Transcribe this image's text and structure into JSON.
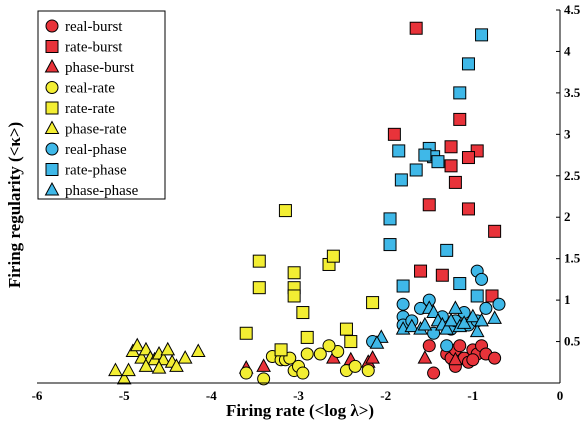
{
  "chart_data": {
    "type": "scatter",
    "xlabel": "Firing rate (<log λ>)",
    "ylabel": "Firing regularity (<κ>)",
    "xlim": [
      -6,
      0
    ],
    "ylim": [
      0,
      4.5
    ],
    "xticks": [
      "-6",
      "-5",
      "-4",
      "-3",
      "-2",
      "-1",
      "0"
    ],
    "yticks": [
      "0.5",
      "1",
      "1.5",
      "2",
      "2.5",
      "3",
      "3.5",
      "4",
      "4.5"
    ],
    "legend_position": "top-left",
    "grid": false,
    "colors": {
      "red": "#e8333a",
      "yellow": "#f3ee33",
      "blue": "#3fb8e8"
    },
    "series": [
      {
        "name": "real-burst",
        "color": "#e8333a",
        "marker": "circle",
        "points": [
          [
            -1.5,
            0.45
          ],
          [
            -1.45,
            0.12
          ],
          [
            -1.3,
            0.35
          ],
          [
            -1.25,
            0.3
          ],
          [
            -1.2,
            0.4
          ],
          [
            -1.15,
            0.45
          ],
          [
            -1.1,
            0.3
          ],
          [
            -1.05,
            0.25
          ],
          [
            -1.0,
            0.4
          ],
          [
            -0.95,
            0.35
          ],
          [
            -0.9,
            0.45
          ],
          [
            -0.85,
            0.35
          ],
          [
            -0.75,
            0.3
          ],
          [
            -1.2,
            0.2
          ],
          [
            -1.0,
            0.28
          ]
        ]
      },
      {
        "name": "rate-burst",
        "color": "#e8333a",
        "marker": "square",
        "points": [
          [
            -1.65,
            4.28
          ],
          [
            -1.15,
            3.18
          ],
          [
            -1.25,
            2.85
          ],
          [
            -0.95,
            2.8
          ],
          [
            -1.05,
            2.72
          ],
          [
            -1.25,
            2.62
          ],
          [
            -1.2,
            2.42
          ],
          [
            -1.5,
            2.15
          ],
          [
            -1.05,
            2.1
          ],
          [
            -0.75,
            1.83
          ],
          [
            -1.35,
            1.3
          ],
          [
            -1.6,
            1.35
          ],
          [
            -0.78,
            1.05
          ],
          [
            -1.9,
            3.0
          ]
        ]
      },
      {
        "name": "phase-burst",
        "color": "#e8333a",
        "marker": "triangle",
        "points": [
          [
            -3.6,
            0.18
          ],
          [
            -3.4,
            0.2
          ],
          [
            -2.6,
            0.3
          ],
          [
            -2.4,
            0.28
          ],
          [
            -2.2,
            0.25
          ],
          [
            -2.15,
            0.3
          ],
          [
            -1.55,
            0.3
          ],
          [
            -1.2,
            0.28
          ]
        ]
      },
      {
        "name": "real-rate",
        "color": "#f3ee33",
        "marker": "circle",
        "points": [
          [
            -3.6,
            0.12
          ],
          [
            -3.4,
            0.05
          ],
          [
            -3.3,
            0.32
          ],
          [
            -3.2,
            0.28
          ],
          [
            -3.15,
            0.28
          ],
          [
            -3.1,
            0.3
          ],
          [
            -3.05,
            0.15
          ],
          [
            -3.0,
            0.2
          ],
          [
            -2.95,
            0.12
          ],
          [
            -2.9,
            0.35
          ],
          [
            -2.75,
            0.35
          ],
          [
            -2.55,
            0.38
          ],
          [
            -2.45,
            0.15
          ],
          [
            -2.35,
            0.2
          ],
          [
            -2.2,
            0.15
          ],
          [
            -2.65,
            0.45
          ]
        ]
      },
      {
        "name": "rate-rate",
        "color": "#f3ee33",
        "marker": "square",
        "points": [
          [
            -3.45,
            1.47
          ],
          [
            -3.45,
            1.15
          ],
          [
            -3.15,
            2.08
          ],
          [
            -3.05,
            1.33
          ],
          [
            -3.05,
            1.15
          ],
          [
            -3.05,
            1.05
          ],
          [
            -2.95,
            0.85
          ],
          [
            -2.65,
            1.43
          ],
          [
            -2.6,
            1.53
          ],
          [
            -2.45,
            0.65
          ],
          [
            -2.4,
            0.5
          ],
          [
            -2.15,
            0.97
          ],
          [
            -3.6,
            0.6
          ],
          [
            -3.2,
            0.4
          ],
          [
            -2.9,
            0.55
          ]
        ]
      },
      {
        "name": "phase-rate",
        "color": "#f3ee33",
        "marker": "triangle",
        "points": [
          [
            -5.1,
            0.15
          ],
          [
            -5.0,
            0.05
          ],
          [
            -4.95,
            0.15
          ],
          [
            -4.9,
            0.38
          ],
          [
            -4.85,
            0.45
          ],
          [
            -4.8,
            0.3
          ],
          [
            -4.75,
            0.4
          ],
          [
            -4.7,
            0.3
          ],
          [
            -4.65,
            0.28
          ],
          [
            -4.6,
            0.35
          ],
          [
            -4.55,
            0.28
          ],
          [
            -4.5,
            0.4
          ],
          [
            -4.45,
            0.25
          ],
          [
            -4.4,
            0.2
          ],
          [
            -4.3,
            0.3
          ],
          [
            -4.15,
            0.38
          ],
          [
            -4.6,
            0.18
          ],
          [
            -4.75,
            0.2
          ]
        ]
      },
      {
        "name": "real-phase",
        "color": "#3fb8e8",
        "marker": "circle",
        "points": [
          [
            -1.8,
            0.95
          ],
          [
            -1.8,
            0.8
          ],
          [
            -1.8,
            0.7
          ],
          [
            -1.7,
            0.75
          ],
          [
            -1.6,
            0.9
          ],
          [
            -1.5,
            1.0
          ],
          [
            -1.45,
            0.6
          ],
          [
            -1.35,
            0.8
          ],
          [
            -1.25,
            0.65
          ],
          [
            -1.2,
            0.75
          ],
          [
            -1.1,
            0.85
          ],
          [
            -1.05,
            0.7
          ],
          [
            -0.95,
            1.35
          ],
          [
            -0.9,
            1.25
          ],
          [
            -0.85,
            0.9
          ],
          [
            -0.7,
            0.95
          ],
          [
            -0.95,
            0.75
          ],
          [
            -1.3,
            0.45
          ],
          [
            -2.15,
            0.5
          ]
        ]
      },
      {
        "name": "rate-phase",
        "color": "#3fb8e8",
        "marker": "square",
        "points": [
          [
            -0.9,
            4.2
          ],
          [
            -1.05,
            3.85
          ],
          [
            -1.15,
            3.5
          ],
          [
            -1.5,
            2.83
          ],
          [
            -1.45,
            2.73
          ],
          [
            -1.4,
            2.67
          ],
          [
            -1.55,
            2.75
          ],
          [
            -1.65,
            2.57
          ],
          [
            -1.82,
            2.45
          ],
          [
            -1.85,
            2.8
          ],
          [
            -1.95,
            1.98
          ],
          [
            -1.95,
            1.67
          ],
          [
            -1.8,
            1.17
          ],
          [
            -1.3,
            1.6
          ],
          [
            -1.15,
            1.2
          ],
          [
            -0.95,
            1.05
          ]
        ]
      },
      {
        "name": "phase-phase",
        "color": "#3fb8e8",
        "marker": "triangle",
        "points": [
          [
            -1.8,
            0.65
          ],
          [
            -1.7,
            0.68
          ],
          [
            -1.6,
            0.65
          ],
          [
            -1.55,
            0.7
          ],
          [
            -1.5,
            0.9
          ],
          [
            -1.45,
            0.85
          ],
          [
            -1.4,
            0.75
          ],
          [
            -1.35,
            0.7
          ],
          [
            -1.3,
            0.65
          ],
          [
            -1.25,
            0.75
          ],
          [
            -1.2,
            0.9
          ],
          [
            -1.15,
            0.68
          ],
          [
            -1.1,
            0.72
          ],
          [
            -1.0,
            0.8
          ],
          [
            -0.95,
            0.62
          ],
          [
            -0.9,
            0.75
          ],
          [
            -0.75,
            0.78
          ],
          [
            -2.05,
            0.55
          ],
          [
            -2.1,
            0.48
          ]
        ]
      }
    ]
  }
}
